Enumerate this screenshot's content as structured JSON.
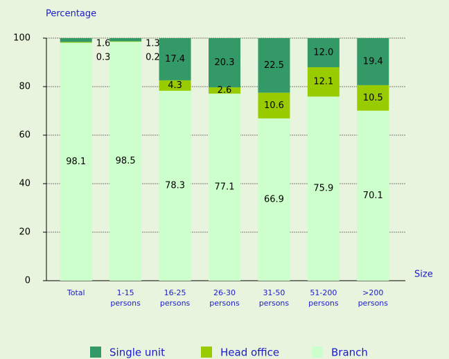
{
  "chart_data": {
    "type": "stacked_bar",
    "y_label": "Percentage",
    "x_label": "Size",
    "categories": [
      "Total",
      "1-15 persons",
      "16-25 persons",
      "26-30 persons",
      "31-50 persons",
      "51-200 persons",
      ">200 persons"
    ],
    "series": [
      {
        "name": "Branch",
        "color": "#ccffcc",
        "values": [
          98.1,
          98.5,
          78.3,
          77.1,
          66.9,
          75.9,
          70.1
        ]
      },
      {
        "name": "Head office",
        "color": "#99cc00",
        "values": [
          0.3,
          0.2,
          4.3,
          2.6,
          10.6,
          12.1,
          10.5
        ]
      },
      {
        "name": "Single unit",
        "color": "#339966",
        "values": [
          1.6,
          1.3,
          17.4,
          20.3,
          22.5,
          12.0,
          19.4
        ],
        "value_labels": [
          "1.6",
          "1.3",
          "17.4",
          "20.3",
          "22.5",
          "12.0",
          "19.4"
        ]
      }
    ],
    "ylim": [
      0,
      100
    ],
    "yticks": [
      0,
      20,
      40,
      60,
      80,
      100
    ],
    "grid": true,
    "legend": "bottom"
  }
}
